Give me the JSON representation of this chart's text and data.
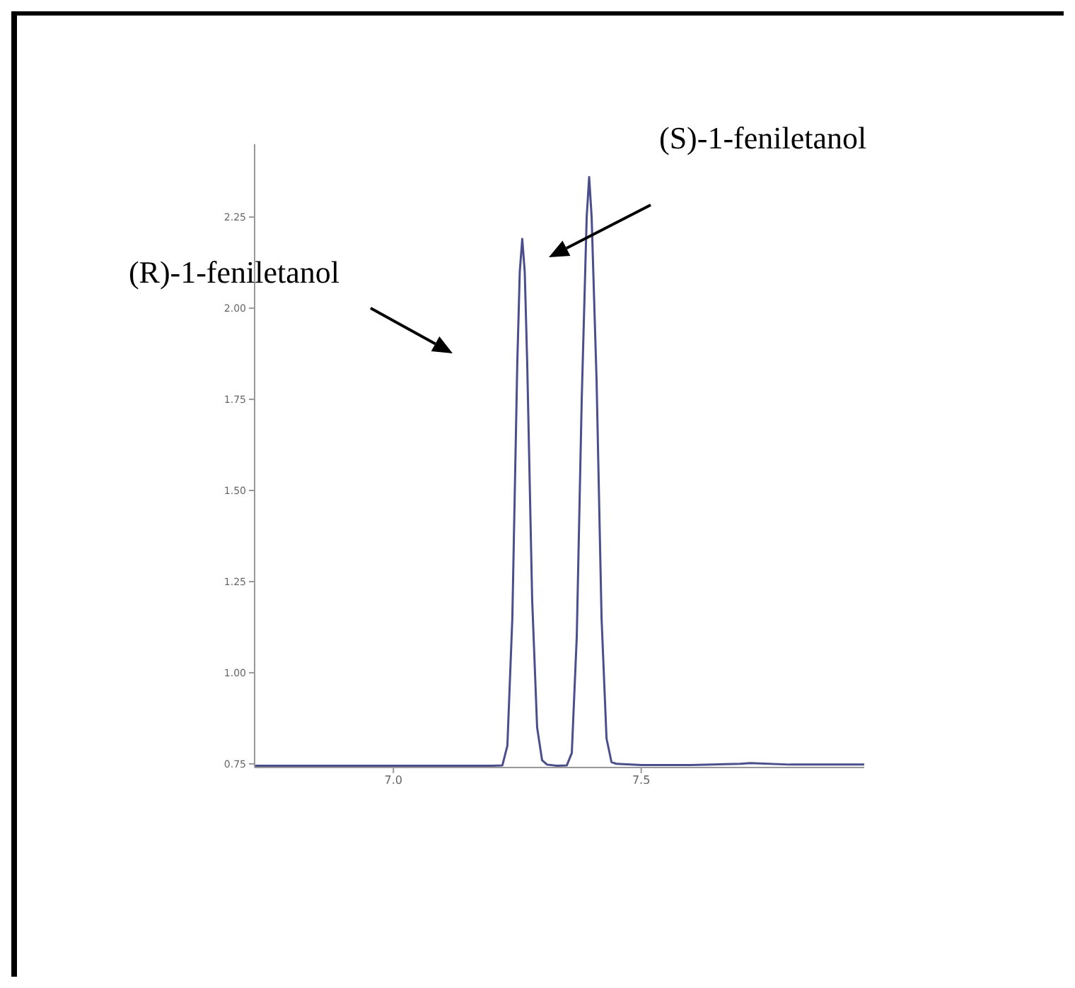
{
  "chart_data": {
    "type": "line",
    "x": [
      6.72,
      6.8,
      6.9,
      7.0,
      7.1,
      7.15,
      7.2,
      7.22,
      7.23,
      7.24,
      7.25,
      7.255,
      7.26,
      7.265,
      7.27,
      7.28,
      7.29,
      7.3,
      7.31,
      7.33,
      7.35,
      7.36,
      7.37,
      7.38,
      7.39,
      7.395,
      7.4,
      7.41,
      7.42,
      7.43,
      7.44,
      7.45,
      7.5,
      7.6,
      7.7,
      7.72,
      7.8,
      7.9,
      7.95
    ],
    "series": [
      {
        "color": "#4a4f8c",
        "values": [
          0.745,
          0.745,
          0.745,
          0.745,
          0.745,
          0.745,
          0.745,
          0.746,
          0.8,
          1.15,
          1.85,
          2.1,
          2.19,
          2.1,
          1.85,
          1.2,
          0.85,
          0.76,
          0.748,
          0.745,
          0.746,
          0.78,
          1.1,
          1.75,
          2.25,
          2.36,
          2.25,
          1.8,
          1.15,
          0.82,
          0.755,
          0.75,
          0.747,
          0.747,
          0.75,
          0.752,
          0.748,
          0.748,
          0.748
        ]
      }
    ],
    "xlim": [
      6.72,
      7.95
    ],
    "xticks": [
      {
        "value": 7.0,
        "label": "7.0"
      },
      7.5
    ],
    "ylim": [
      0.74,
      2.45
    ],
    "yticks": [
      0.75,
      {
        "value": 1.0,
        "label": "1.00"
      },
      1.25,
      {
        "value": 1.5,
        "label": "1.50"
      },
      1.75,
      {
        "value": 2.0,
        "label": "2.00"
      },
      2.25
    ],
    "annotations": [
      "(R)-1-feniletanol",
      "(S)-1-feniletanol"
    ],
    "grid": false,
    "marker": "none",
    "line_style": "solid"
  }
}
